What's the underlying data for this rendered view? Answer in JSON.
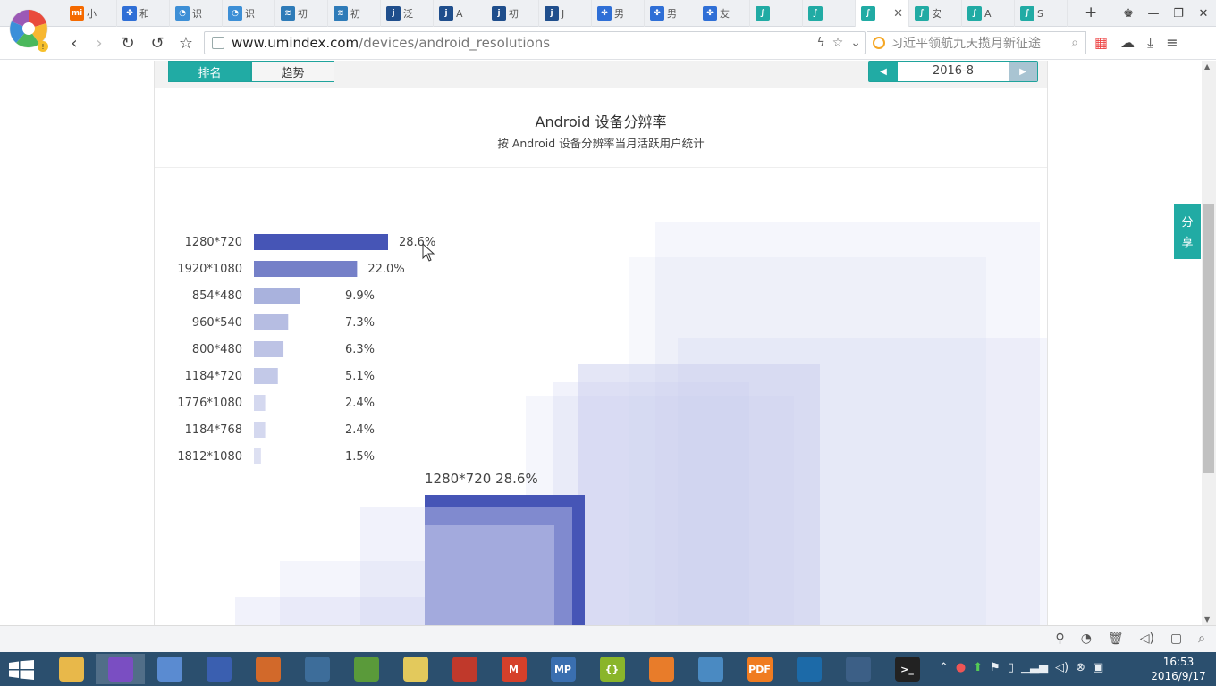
{
  "browser": {
    "tabs": [
      {
        "icon": "xiaomi-icon",
        "color": "#f56a00",
        "glyph": "mi",
        "label": "小"
      },
      {
        "icon": "baidu-paw-icon",
        "color": "#2f6fd6",
        "glyph": "✤",
        "label": "和"
      },
      {
        "icon": "chat-bubble-icon",
        "color": "#3d8fd6",
        "glyph": "◔",
        "label": "识"
      },
      {
        "icon": "chat-bubble-icon",
        "color": "#3d8fd6",
        "glyph": "◔",
        "label": "识"
      },
      {
        "icon": "swirl-icon",
        "color": "#2e7bb8",
        "glyph": "≋",
        "label": "初"
      },
      {
        "icon": "swirl-icon",
        "color": "#2e7bb8",
        "glyph": "≋",
        "label": "初"
      },
      {
        "icon": "j-icon",
        "color": "#1f4e8c",
        "glyph": "j",
        "label": "泛"
      },
      {
        "icon": "j-icon",
        "color": "#1f4e8c",
        "glyph": "j",
        "label": "A"
      },
      {
        "icon": "j-icon",
        "color": "#1f4e8c",
        "glyph": "j",
        "label": "初"
      },
      {
        "icon": "j-icon",
        "color": "#1f4e8c",
        "glyph": "j",
        "label": "J"
      },
      {
        "icon": "baidu-paw-icon",
        "color": "#2f6fd6",
        "glyph": "✤",
        "label": "男"
      },
      {
        "icon": "baidu-paw-icon",
        "color": "#2f6fd6",
        "glyph": "✤",
        "label": "男"
      },
      {
        "icon": "baidu-paw-icon",
        "color": "#2f6fd6",
        "glyph": "✤",
        "label": "友"
      },
      {
        "icon": "umindex-icon",
        "color": "#21aba4",
        "glyph": "∫",
        "label": ""
      },
      {
        "icon": "umindex-icon",
        "color": "#21aba4",
        "glyph": "∫",
        "label": ""
      },
      {
        "icon": "umindex-icon",
        "color": "#21aba4",
        "glyph": "∫",
        "label": "",
        "active": true
      },
      {
        "icon": "umindex-icon",
        "color": "#21aba4",
        "glyph": "∫",
        "label": "安"
      },
      {
        "icon": "umindex-icon",
        "color": "#21aba4",
        "glyph": "∫",
        "label": "A"
      },
      {
        "icon": "umindex-icon",
        "color": "#21aba4",
        "glyph": "∫",
        "label": "S"
      }
    ],
    "url_host": "www.umindex.com",
    "url_path": "/devices/android_resolutions",
    "search_placeholder": "习近平领航九天揽月新征途"
  },
  "page": {
    "tab_rank": "排名",
    "tab_trend": "趋势",
    "date": "2016-8",
    "title": "Android 设备分辨率",
    "subtitle": "按 Android 设备分辨率当月活跃用户统计",
    "tooltip": "1280*720 28.6%",
    "share": [
      "分",
      "享"
    ]
  },
  "colors": {
    "accent": "#21aba4",
    "bar_top": "#4655b6"
  },
  "chart_data": {
    "type": "bar",
    "title": "Android 设备分辨率",
    "subtitle": "按 Android 设备分辨率当月活跃用户统计",
    "categories": [
      "1280*720",
      "1920*1080",
      "854*480",
      "960*540",
      "800*480",
      "1184*720",
      "1776*1080",
      "1184*768",
      "1812*1080"
    ],
    "values": [
      28.6,
      22.0,
      9.9,
      7.3,
      6.3,
      5.1,
      2.4,
      2.4,
      1.5
    ],
    "labels": [
      "28.6%",
      "22.0%",
      "9.9%",
      "7.3%",
      "6.3%",
      "5.1%",
      "2.4%",
      "2.4%",
      "1.5%"
    ],
    "unit": "%"
  },
  "taskbar": {
    "apps": [
      {
        "icon": "file-explorer-icon",
        "color": "#e8b84a"
      },
      {
        "icon": "maxthon-browser-icon",
        "color": "#7a4ec2",
        "selected": true
      },
      {
        "icon": "paint-palette-icon",
        "color": "#5a8bd1"
      },
      {
        "icon": "pen-tool-icon",
        "color": "#3a5fb0"
      },
      {
        "icon": "magnifier-icon",
        "color": "#d2692a"
      },
      {
        "icon": "crosshair-icon",
        "color": "#3d6d9a"
      },
      {
        "icon": "chart-editor-icon",
        "color": "#5a9a3a"
      },
      {
        "icon": "sticky-note-icon",
        "color": "#e3c95c"
      },
      {
        "icon": "red-circle-icon",
        "color": "#c0392b"
      },
      {
        "icon": "m-app-icon",
        "color": "#d6402a",
        "glyph": "M"
      },
      {
        "icon": "mp-app-icon",
        "color": "#3a6fb0",
        "glyph": "MP"
      },
      {
        "icon": "braces-app-icon",
        "color": "#8ab52a",
        "glyph": "{}"
      },
      {
        "icon": "java-icon",
        "color": "#e87c2a"
      },
      {
        "icon": "photo-viewer-icon",
        "color": "#4a8ac2"
      },
      {
        "icon": "pdf-app-icon",
        "color": "#f07c21",
        "glyph": "PDF"
      },
      {
        "icon": "ring-app-icon",
        "color": "#1c6aa8"
      },
      {
        "icon": "snipping-icon",
        "color": "#3c5f86"
      },
      {
        "icon": "terminal-icon",
        "color": "#222",
        "glyph": ">_"
      }
    ],
    "time": "16:53",
    "date": "2016/9/17"
  }
}
